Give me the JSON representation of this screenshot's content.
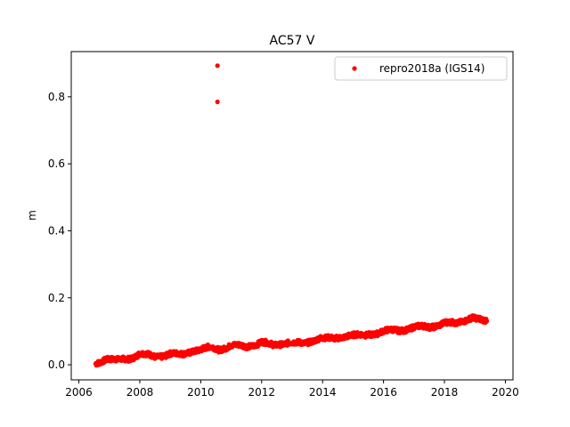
{
  "chart_data": {
    "type": "scatter",
    "title": "AC57 V",
    "xlabel": "",
    "ylabel": "m",
    "xlim": [
      2005.75,
      2020.25
    ],
    "ylim": [
      -0.045,
      0.935
    ],
    "xticks": [
      2006,
      2008,
      2010,
      2012,
      2014,
      2016,
      2018,
      2020
    ],
    "xtick_labels": [
      "2006",
      "2008",
      "2010",
      "2012",
      "2014",
      "2016",
      "2018",
      "2020"
    ],
    "yticks": [
      0.0,
      0.2,
      0.4,
      0.6,
      0.8
    ],
    "ytick_labels": [
      "0.0",
      "0.2",
      "0.4",
      "0.6",
      "0.8"
    ],
    "grid": false,
    "legend_position": "top-right",
    "series": [
      {
        "name": "repro2018a (IGS14)",
        "color": "#ff0000",
        "marker": "dot",
        "x_start": 2006.55,
        "x_end": 2019.4,
        "trend": [
          [
            2006.55,
            0.003
          ],
          [
            2006.9,
            0.02
          ],
          [
            2007.3,
            0.012
          ],
          [
            2007.7,
            0.02
          ],
          [
            2008.0,
            0.035
          ],
          [
            2008.5,
            0.022
          ],
          [
            2009.0,
            0.035
          ],
          [
            2009.4,
            0.028
          ],
          [
            2009.8,
            0.045
          ],
          [
            2010.3,
            0.05
          ],
          [
            2010.6,
            0.045
          ],
          [
            2011.0,
            0.06
          ],
          [
            2011.5,
            0.052
          ],
          [
            2012.0,
            0.07
          ],
          [
            2012.4,
            0.055
          ],
          [
            2012.9,
            0.07
          ],
          [
            2013.4,
            0.06
          ],
          [
            2013.9,
            0.083
          ],
          [
            2014.4,
            0.075
          ],
          [
            2014.9,
            0.092
          ],
          [
            2015.4,
            0.085
          ],
          [
            2016.0,
            0.103
          ],
          [
            2016.5,
            0.1
          ],
          [
            2017.0,
            0.115
          ],
          [
            2017.5,
            0.11
          ],
          [
            2018.0,
            0.128
          ],
          [
            2018.4,
            0.12
          ],
          [
            2018.9,
            0.145
          ],
          [
            2019.4,
            0.125
          ]
        ],
        "outliers": [
          [
            2010.55,
            0.893
          ],
          [
            2010.55,
            0.785
          ]
        ]
      }
    ]
  }
}
